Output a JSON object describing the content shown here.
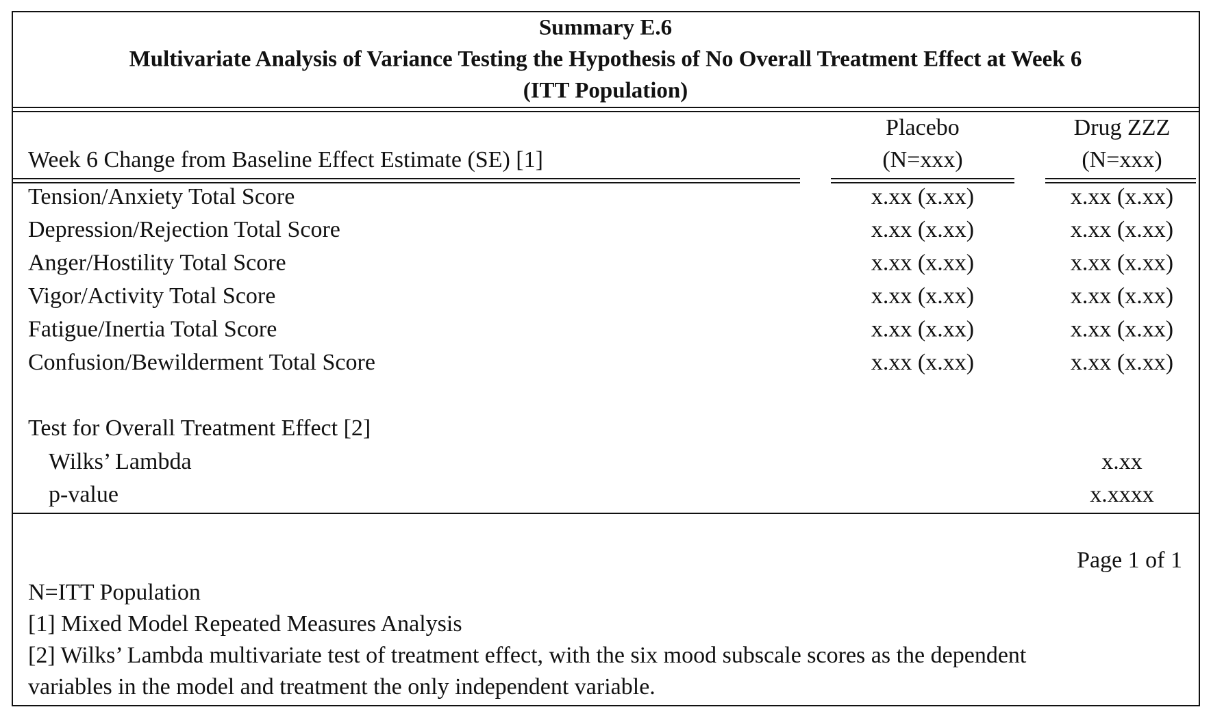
{
  "header": {
    "title_lines": [
      "Summary E.6",
      "Multivariate Analysis of Variance Testing the Hypothesis of No Overall Treatment Effect at Week 6",
      "(ITT Population)"
    ]
  },
  "table": {
    "row_header": "Week 6 Change from Baseline Effect Estimate (SE) [1]",
    "columns": [
      {
        "name": "Placebo",
        "n": "(N=xxx)"
      },
      {
        "name": "Drug ZZZ",
        "n": "(N=xxx)"
      }
    ],
    "rows": [
      [
        "Tension/Anxiety Total Score",
        "x.xx (x.xx)",
        "x.xx (x.xx)"
      ],
      [
        "Depression/Rejection Total Score",
        "x.xx (x.xx)",
        "x.xx (x.xx)"
      ],
      [
        "Anger/Hostility Total Score",
        "x.xx (x.xx)",
        "x.xx (x.xx)"
      ],
      [
        "Vigor/Activity Total Score",
        "x.xx (x.xx)",
        "x.xx (x.xx)"
      ],
      [
        "Fatigue/Inertia Total Score",
        "x.xx (x.xx)",
        "x.xx (x.xx)"
      ],
      [
        "Confusion/Bewilderment Total Score",
        "x.xx (x.xx)",
        "x.xx (x.xx)"
      ]
    ],
    "test": {
      "title": "Test for Overall Treatment Effect [2]",
      "rows": [
        [
          "Wilks’ Lambda",
          "x.xx"
        ],
        [
          "p-value",
          "x.xxxx"
        ]
      ]
    }
  },
  "page_number": "Page 1 of 1",
  "footnotes": [
    "N=ITT Population",
    "[1] Mixed Model Repeated Measures Analysis",
    "[2] Wilks’ Lambda multivariate test of treatment effect, with the six mood subscale scores as the dependent",
    "variables in the model and treatment the only independent variable."
  ]
}
